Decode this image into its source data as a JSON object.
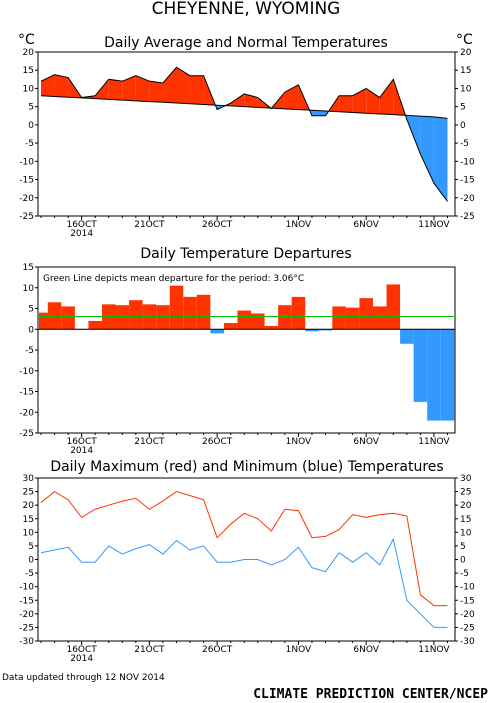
{
  "page": {
    "title": "CHEYENNE, WYOMING",
    "updated": "Data updated through 12 NOV 2014",
    "credit": "CLIMATE PREDICTION CENTER/NCEP"
  },
  "colors": {
    "red": "#ff3300",
    "blue": "#3399ff",
    "green": "#00c000",
    "black": "#000000"
  },
  "x_tick_labels": [
    "16OCT",
    "21OCT",
    "26OCT",
    "1NOV",
    "6NOV",
    "11NOV"
  ],
  "x_year_label": "2014",
  "chart_data": [
    {
      "type": "area",
      "title": "Daily Average and Normal Temperatures",
      "ylabel_left": "°C",
      "ylabel_right": "°C",
      "ylim": [
        -25,
        20
      ],
      "yticks": [
        -25,
        -20,
        -15,
        -10,
        -5,
        0,
        5,
        10,
        15,
        20
      ],
      "x": [
        "13OCT",
        "14OCT",
        "15OCT",
        "16OCT",
        "17OCT",
        "18OCT",
        "19OCT",
        "20OCT",
        "21OCT",
        "22OCT",
        "23OCT",
        "24OCT",
        "25OCT",
        "26OCT",
        "27OCT",
        "28OCT",
        "29OCT",
        "30OCT",
        "31OCT",
        "1NOV",
        "2NOV",
        "3NOV",
        "4NOV",
        "5NOV",
        "6NOV",
        "7NOV",
        "8NOV",
        "9NOV",
        "10NOV",
        "11NOV",
        "12NOV"
      ],
      "series": [
        {
          "name": "average",
          "values": [
            12,
            13.8,
            13,
            7.5,
            8,
            12.5,
            12,
            13.5,
            12,
            11.5,
            15.8,
            13.5,
            13.5,
            4.2,
            6,
            8.5,
            7.5,
            4.5,
            9,
            11,
            2.5,
            2.5,
            8,
            8,
            10,
            7.5,
            12.5,
            1.5,
            -8,
            -16,
            -21
          ]
        },
        {
          "name": "normal",
          "values": [
            8,
            7.8,
            7.6,
            7.4,
            7.2,
            7,
            6.8,
            6.6,
            6.4,
            6.2,
            6,
            5.8,
            5.6,
            5.4,
            5.2,
            5,
            4.8,
            4.6,
            4.4,
            4.2,
            4,
            3.8,
            3.6,
            3.4,
            3.2,
            3,
            2.8,
            2.6,
            2.4,
            2.2,
            1.8
          ]
        }
      ]
    },
    {
      "type": "bar",
      "title": "Daily Temperature Departures",
      "annotation": "Green Line depicts mean departure for the period: 3.06°C",
      "mean_departure": 3.06,
      "ylim": [
        -25,
        15
      ],
      "yticks": [
        -25,
        -20,
        -15,
        -10,
        -5,
        0,
        5,
        10,
        15
      ],
      "x": [
        "13OCT",
        "14OCT",
        "15OCT",
        "16OCT",
        "17OCT",
        "18OCT",
        "19OCT",
        "20OCT",
        "21OCT",
        "22OCT",
        "23OCT",
        "24OCT",
        "25OCT",
        "26OCT",
        "27OCT",
        "28OCT",
        "29OCT",
        "30OCT",
        "31OCT",
        "1NOV",
        "2NOV",
        "3NOV",
        "4NOV",
        "5NOV",
        "6NOV",
        "7NOV",
        "8NOV",
        "9NOV",
        "10NOV",
        "11NOV",
        "12NOV"
      ],
      "values": [
        4,
        6.5,
        5.5,
        0,
        2,
        6,
        5.8,
        7,
        6,
        5.8,
        10.5,
        7.8,
        8.3,
        -1,
        1.5,
        4.5,
        3.8,
        0.8,
        5.8,
        7.8,
        -0.5,
        -0.3,
        5.5,
        5.2,
        7.5,
        5.5,
        10.8,
        -3.5,
        -17.5,
        -22,
        -22
      ]
    },
    {
      "type": "line",
      "title": "Daily Maximum (red) and Minimum (blue) Temperatures",
      "ylim": [
        -30,
        30
      ],
      "yticks": [
        -30,
        -25,
        -20,
        -15,
        -10,
        -5,
        0,
        5,
        10,
        15,
        20,
        25,
        30
      ],
      "x": [
        "13OCT",
        "14OCT",
        "15OCT",
        "16OCT",
        "17OCT",
        "18OCT",
        "19OCT",
        "20OCT",
        "21OCT",
        "22OCT",
        "23OCT",
        "24OCT",
        "25OCT",
        "26OCT",
        "27OCT",
        "28OCT",
        "29OCT",
        "30OCT",
        "31OCT",
        "1NOV",
        "2NOV",
        "3NOV",
        "4NOV",
        "5NOV",
        "6NOV",
        "7NOV",
        "8NOV",
        "9NOV",
        "10NOV",
        "11NOV",
        "12NOV"
      ],
      "series": [
        {
          "name": "maximum",
          "values": [
            21,
            25,
            22,
            15.5,
            18.5,
            20,
            21.5,
            22.5,
            18.5,
            21.5,
            25,
            23.5,
            22,
            8,
            13,
            17,
            15,
            10.5,
            18.5,
            18,
            8,
            8.5,
            11,
            16.5,
            15.5,
            16.5,
            17,
            16,
            -13,
            -17,
            -17
          ]
        },
        {
          "name": "minimum",
          "values": [
            2.5,
            3.5,
            4.5,
            -1,
            -1,
            5,
            2,
            4,
            5.5,
            2,
            7,
            3.5,
            5,
            -1,
            -1,
            0,
            0,
            -2,
            0,
            4.5,
            -3,
            -4.5,
            2.5,
            -1,
            2.5,
            -2,
            7.5,
            -15,
            -20,
            -25,
            -25
          ]
        }
      ]
    }
  ]
}
